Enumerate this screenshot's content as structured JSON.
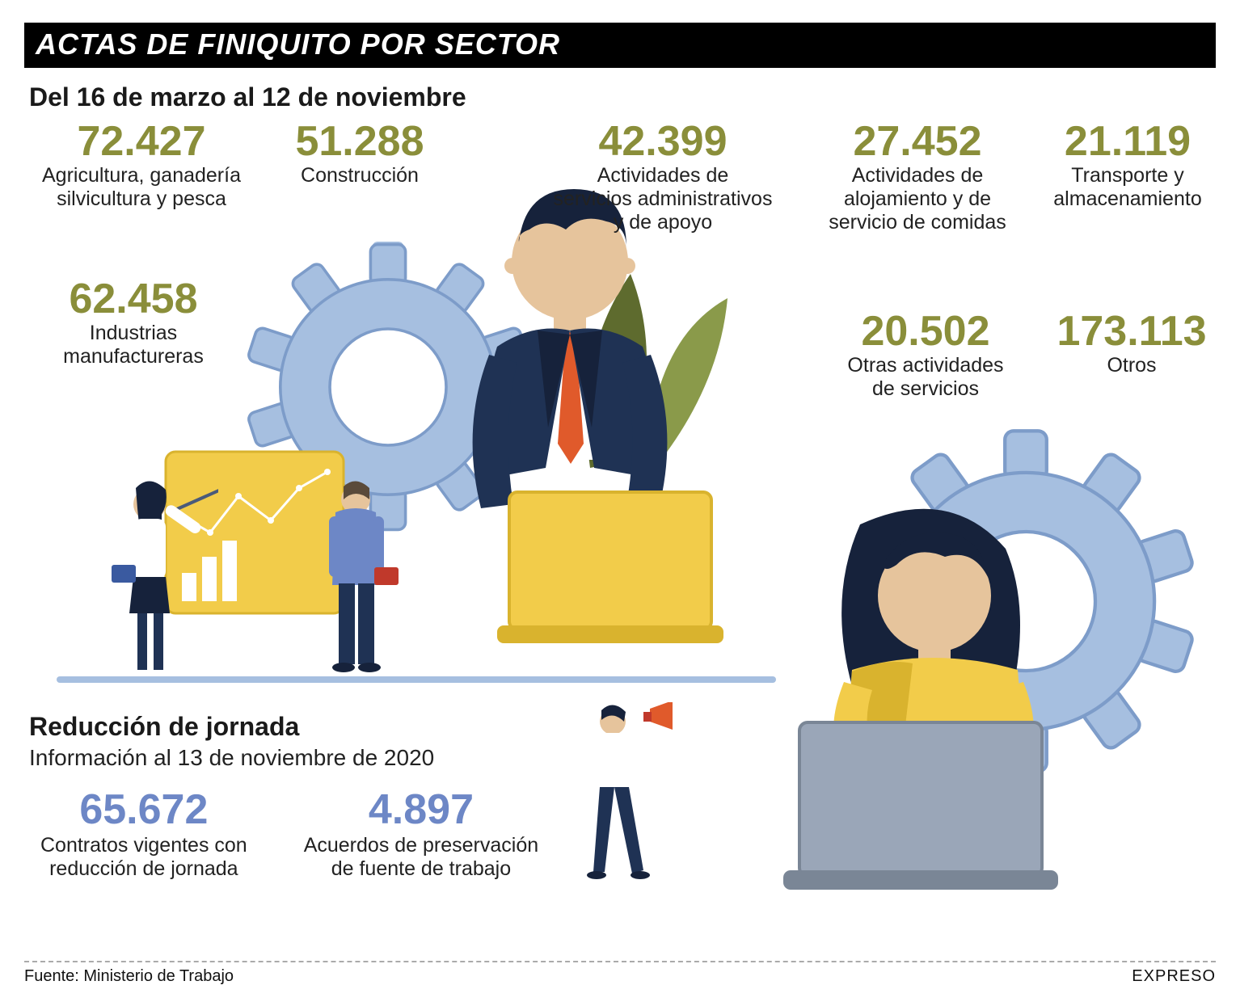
{
  "colors": {
    "olive": "#8a8e3a",
    "blue_stat": "#6d87c6",
    "title_bg": "#000000",
    "title_fg": "#ffffff",
    "text": "#1a1a1a",
    "gear_blue": "#a6bfe0",
    "gear_blue_dark": "#7d9cc9",
    "yellow": "#f2cc4a",
    "yellow_dark": "#d9b32e",
    "navy": "#1f3254",
    "navy_dark": "#16223b",
    "orange": "#e05a2b",
    "skin": "#e6c49c",
    "leaf": "#5e6b2e",
    "leaf_light": "#8a9a4a",
    "ground": "#a6bfe0",
    "laptop_gray": "#9aa6b8",
    "laptop_gray_dark": "#7a8696"
  },
  "header": {
    "title": "ACTAS DE FINIQUITO POR SECTOR"
  },
  "section1": {
    "subtitle": "Del 16 de marzo al 12 de noviembre",
    "stats": {
      "agricultura": {
        "value": "72.427",
        "label": "Agricultura, ganadería\nsilvicultura y pesca"
      },
      "construccion": {
        "value": "51.288",
        "label": "Construcción"
      },
      "servicios_admin": {
        "value": "42.399",
        "label": "Actividades de\nservicios administrativos\ny de apoyo"
      },
      "alojamiento": {
        "value": "27.452",
        "label": "Actividades de\nalojamiento y de\nservicio de comidas"
      },
      "transporte": {
        "value": "21.119",
        "label": "Transporte y\nalmacenamiento"
      },
      "manufactureras": {
        "value": "62.458",
        "label": "Industrias\nmanufactureras"
      },
      "otras_serv": {
        "value": "20.502",
        "label": "Otras actividades\nde servicios"
      },
      "otros": {
        "value": "173.113",
        "label": "Otros"
      }
    }
  },
  "section2": {
    "title": "Reducción de jornada",
    "subtitle": "Información al 13 de noviembre de 2020",
    "stats": {
      "contratos": {
        "value": "65.672",
        "label": "Contratos vigentes con\nreducción de jornada"
      },
      "acuerdos": {
        "value": "4.897",
        "label": "Acuerdos de preservación\nde fuente de trabajo"
      }
    }
  },
  "footer": {
    "source": "Fuente: Ministerio de Trabajo",
    "brand": "EXPRESO"
  }
}
